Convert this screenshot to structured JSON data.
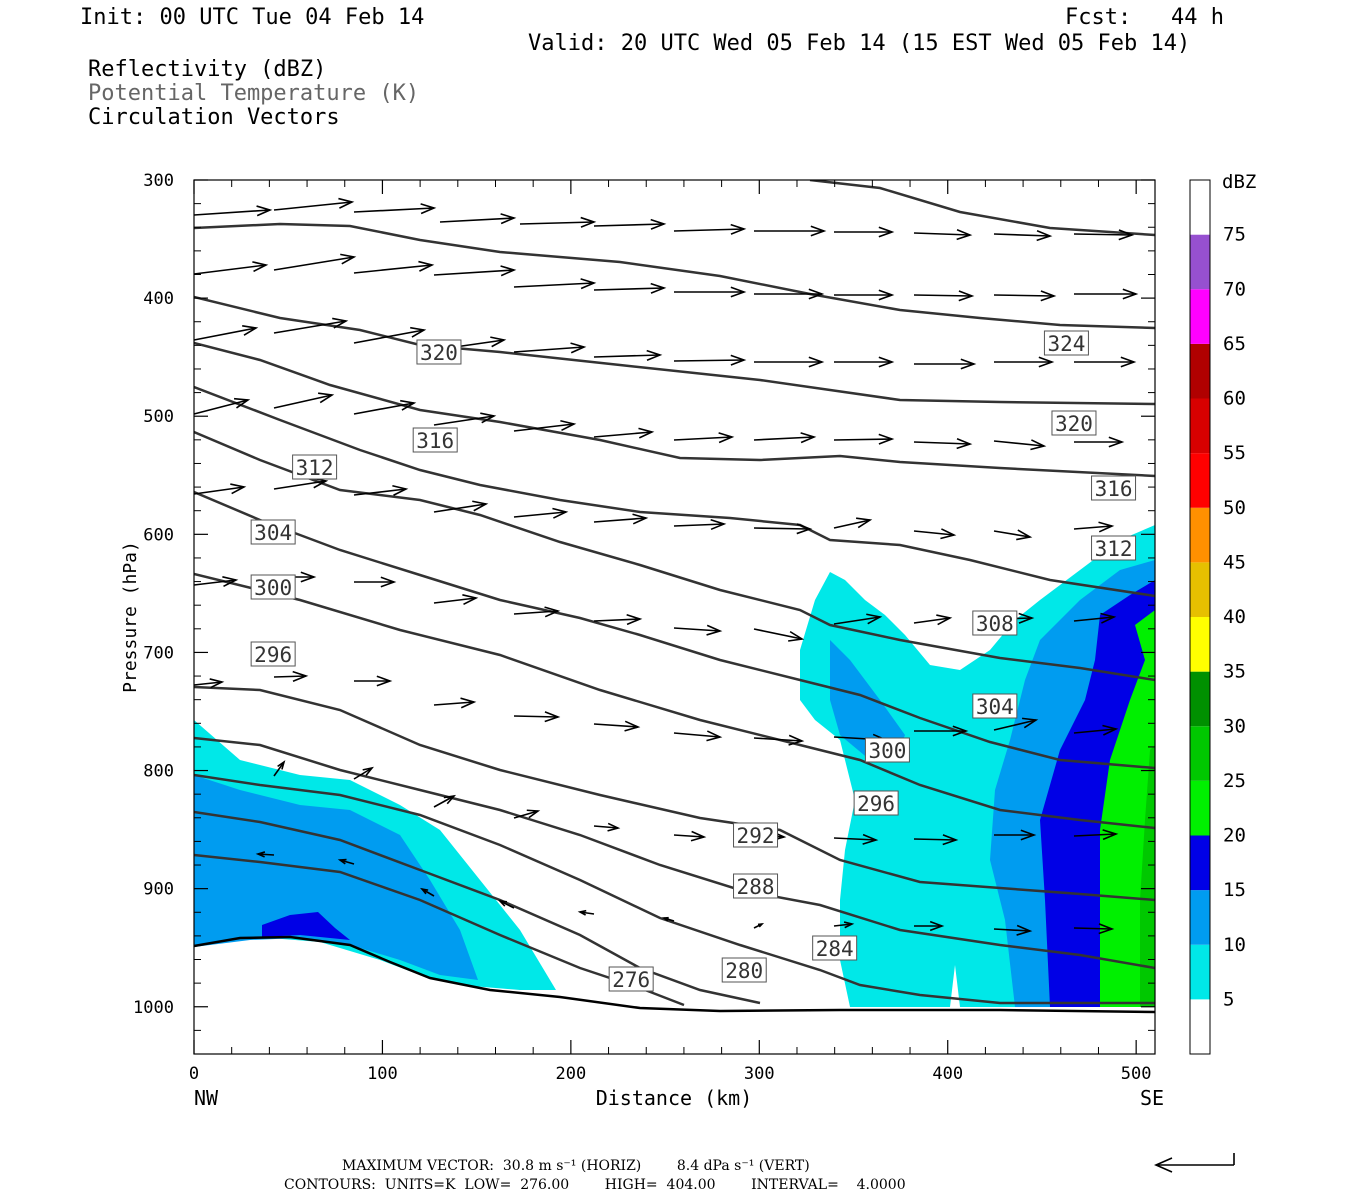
{
  "header": {
    "init": "Init: 00 UTC Tue 04 Feb 14",
    "fcst": "Fcst:   44 h",
    "valid": "Valid: 20 UTC Wed 05 Feb 14 (15 EST Wed 05 Feb 14)",
    "fields": [
      "Reflectivity (dBZ)",
      "Potential Temperature (K)",
      "Circulation Vectors"
    ]
  },
  "chart_data": {
    "type": "cross-section",
    "xlabel": "Distance (km)",
    "ylabel": "Pressure (hPa)",
    "x_ticks": [
      0,
      100,
      200,
      300,
      400,
      500
    ],
    "y_ticks": [
      300,
      400,
      500,
      600,
      700,
      800,
      900,
      1000
    ],
    "xlim": [
      0,
      510
    ],
    "ylim": [
      300,
      1040
    ],
    "x_end_labels": {
      "left": "NW",
      "right": "SE"
    },
    "colorbar": {
      "title": "dBZ",
      "levels": [
        5,
        10,
        15,
        20,
        25,
        30,
        35,
        40,
        45,
        50,
        55,
        60,
        65,
        70,
        75
      ],
      "colors": [
        "#ffffff",
        "#00e8e8",
        "#009cf0",
        "#0000e6",
        "#00f000",
        "#00c800",
        "#009000",
        "#ffff00",
        "#e6c000",
        "#ff9000",
        "#ff0000",
        "#d80000",
        "#b00000",
        "#ff00ff",
        "#9650d0",
        "#ffffff"
      ]
    },
    "contour_labels": [
      {
        "label": "324",
        "x": 463,
        "y": 343
      },
      {
        "label": "320",
        "x": 130,
        "y": 352
      },
      {
        "label": "320",
        "x": 467,
        "y": 423
      },
      {
        "label": "316",
        "x": 128,
        "y": 440
      },
      {
        "label": "316",
        "x": 488,
        "y": 488
      },
      {
        "label": "312",
        "x": 64,
        "y": 467
      },
      {
        "label": "312",
        "x": 488,
        "y": 548
      },
      {
        "label": "304",
        "x": 42,
        "y": 532
      },
      {
        "label": "300",
        "x": 42,
        "y": 587
      },
      {
        "label": "308",
        "x": 425,
        "y": 623
      },
      {
        "label": "296",
        "x": 42,
        "y": 654
      },
      {
        "label": "304",
        "x": 425,
        "y": 706
      },
      {
        "label": "300",
        "x": 368,
        "y": 750
      },
      {
        "label": "296",
        "x": 362,
        "y": 803
      },
      {
        "label": "292",
        "x": 298,
        "y": 835
      },
      {
        "label": "288",
        "x": 298,
        "y": 886
      },
      {
        "label": "284",
        "x": 340,
        "y": 948
      },
      {
        "label": "280",
        "x": 292,
        "y": 970
      },
      {
        "label": "276",
        "x": 232,
        "y": 979
      }
    ],
    "footer": {
      "max_vector": "MAXIMUM VECTOR:  30.8 m s⁻¹ (HORIZ)        8.4 dPa s⁻¹ (VERT)",
      "contours": "CONTOURS:  UNITS=K  LOW=  276.00        HIGH=  404.00        INTERVAL=    4.0000"
    }
  }
}
